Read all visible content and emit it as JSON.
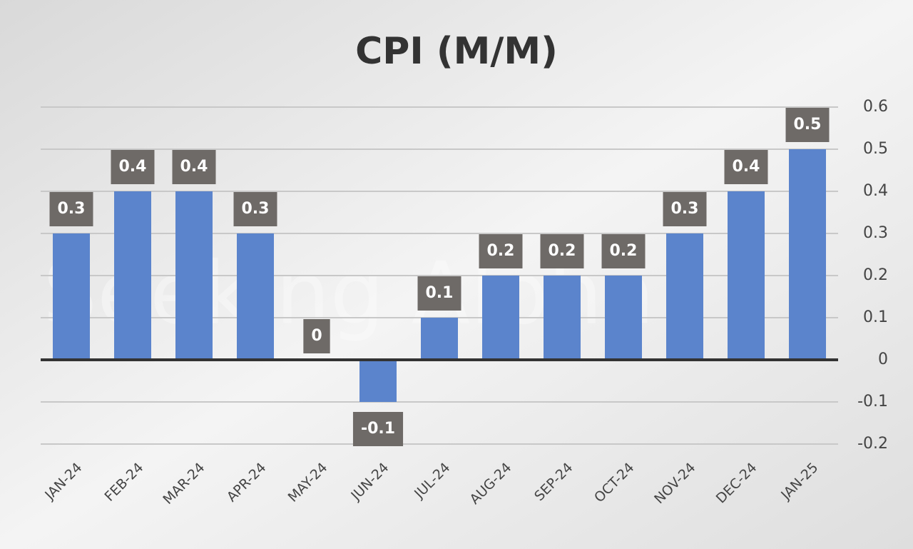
{
  "chart_data": {
    "type": "bar",
    "title": "CPI (M/M)",
    "watermark": "Seeking Alpha",
    "categories": [
      "JAN-24",
      "FEB-24",
      "MAR-24",
      "APR-24",
      "MAY-24",
      "JUN-24",
      "JUL-24",
      "AUG-24",
      "SEP-24",
      "OCT-24",
      "NOV-24",
      "DEC-24",
      "JAN-25"
    ],
    "values": [
      0.3,
      0.4,
      0.4,
      0.3,
      0,
      -0.1,
      0.1,
      0.2,
      0.2,
      0.2,
      0.3,
      0.4,
      0.5
    ],
    "color": "#5b84cc",
    "ylim": [
      -0.2,
      0.6
    ],
    "yticks": [
      0.6,
      0.5,
      0.4,
      0.3,
      0.2,
      0.1,
      0,
      -0.1,
      -0.2
    ],
    "grid": true
  }
}
